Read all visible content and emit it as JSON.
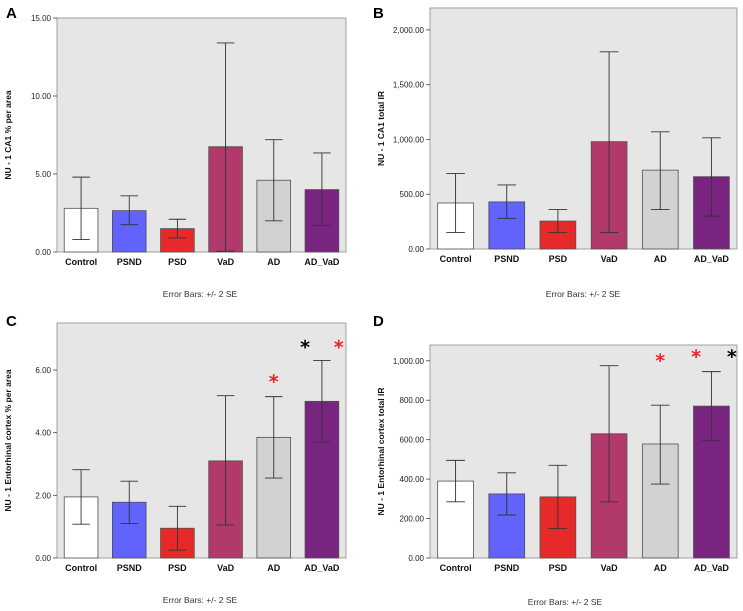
{
  "categories": [
    "Control",
    "PSND",
    "PSD",
    "VaD",
    "AD",
    "AD_VaD"
  ],
  "bar_colors": [
    "#ffffff",
    "#6262fc",
    "#e62a2a",
    "#b1396b",
    "#d2d2d2",
    "#7a2481"
  ],
  "star_colors": {
    "red": "#f02020",
    "black": "#000000"
  },
  "plot_background": "#e6e6e6",
  "chart_data": [
    {
      "panel": "A",
      "type": "bar",
      "categories": [
        "Control",
        "PSND",
        "PSD",
        "VaD",
        "AD",
        "AD_VaD"
      ],
      "values": [
        2.8,
        2.65,
        1.5,
        6.75,
        4.6,
        4.0
      ],
      "error_low": [
        0.8,
        1.75,
        0.9,
        0.05,
        2.0,
        1.7
      ],
      "error_high": [
        4.8,
        3.6,
        2.1,
        13.4,
        7.2,
        6.35
      ],
      "ylim": [
        0,
        15
      ],
      "yticks": [
        "0.00",
        "5.00",
        "10.00",
        "15.00"
      ],
      "ytick_values": [
        0,
        5,
        10,
        15
      ],
      "ylabel": "NU - 1 CA1 % per area",
      "footer": "Error Bars: +/- 2 SE",
      "annotations": []
    },
    {
      "panel": "B",
      "type": "bar",
      "categories": [
        "Control",
        "PSND",
        "PSD",
        "VaD",
        "AD",
        "AD_VaD"
      ],
      "values": [
        420,
        430,
        255,
        980,
        720,
        660
      ],
      "error_low": [
        150,
        280,
        150,
        150,
        360,
        300
      ],
      "error_high": [
        690,
        585,
        360,
        1800,
        1070,
        1015
      ],
      "ylim": [
        0,
        2200
      ],
      "yticks": [
        "0.00",
        "500.00",
        "1,000.00",
        "1,500.00",
        "2,000.00"
      ],
      "ytick_values": [
        0,
        500,
        1000,
        1500,
        2000
      ],
      "ylabel": "NU - 1 CA1 total IR",
      "footer": "Error Bars: +/- 2 SE",
      "annotations": []
    },
    {
      "panel": "C",
      "type": "bar",
      "categories": [
        "Control",
        "PSND",
        "PSD",
        "VaD",
        "AD",
        "AD_VaD"
      ],
      "values": [
        1.95,
        1.78,
        0.95,
        3.1,
        3.85,
        5.0
      ],
      "error_low": [
        1.08,
        1.1,
        0.25,
        1.05,
        2.55,
        3.7
      ],
      "error_high": [
        2.82,
        2.45,
        1.65,
        5.18,
        5.15,
        6.3
      ],
      "ylim": [
        0,
        7.5
      ],
      "yticks": [
        "0.00",
        "2.00",
        "4.00",
        "6.00"
      ],
      "ytick_values": [
        0,
        2,
        4,
        6
      ],
      "ylabel": "NU - 1 Entorhinal cortex % per area",
      "footer": "Error Bars: +/- 2 SE",
      "annotations": [
        {
          "category_index": 4,
          "offset": 0,
          "text": "*",
          "color": "red",
          "y": 5.75
        },
        {
          "category_index": 5,
          "offset": -0.35,
          "text": "*",
          "color": "black",
          "y": 6.85
        },
        {
          "category_index": 5,
          "offset": 0.35,
          "text": "*",
          "color": "red",
          "y": 6.85
        }
      ]
    },
    {
      "panel": "D",
      "type": "bar",
      "categories": [
        "Control",
        "PSND",
        "PSD",
        "VaD",
        "AD",
        "AD_VaD"
      ],
      "values": [
        390,
        325,
        310,
        630,
        578,
        770
      ],
      "error_low": [
        285,
        218,
        150,
        285,
        375,
        595
      ],
      "error_high": [
        495,
        432,
        470,
        975,
        775,
        945
      ],
      "ylim": [
        0,
        1080
      ],
      "yticks": [
        "0.00",
        "200.00",
        "400.00",
        "600.00",
        "800.00",
        "1,000.00"
      ],
      "ytick_values": [
        0,
        200,
        400,
        600,
        800,
        1000
      ],
      "ylabel": "NU - 1 Entorhinal cortex total IR",
      "footer": "Error Bars: +/- 2 SE",
      "annotations": [
        {
          "category_index": 4,
          "offset": 0,
          "text": "*",
          "color": "red",
          "y": 1020
        },
        {
          "category_index": 5,
          "offset": -0.3,
          "text": "*",
          "color": "red",
          "y": 1040
        },
        {
          "category_index": 5,
          "offset": 0.4,
          "text": "*",
          "color": "black",
          "y": 1040
        }
      ]
    }
  ]
}
